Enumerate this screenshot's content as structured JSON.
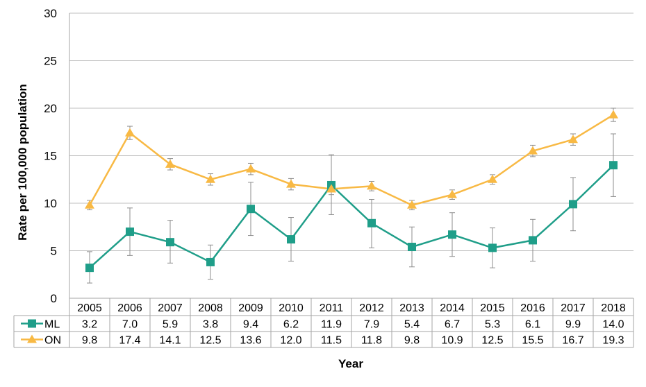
{
  "chart_data": {
    "type": "line",
    "title": "",
    "xlabel": "Year",
    "ylabel": "Rate per 100,000 population",
    "ylim": [
      0,
      30
    ],
    "yticks": [
      0,
      5,
      10,
      15,
      20,
      25,
      30
    ],
    "grid": true,
    "legend_placement": "data-table-left",
    "categories": [
      "2005",
      "2006",
      "2007",
      "2008",
      "2009",
      "2010",
      "2011",
      "2012",
      "2013",
      "2014",
      "2015",
      "2016",
      "2017",
      "2018"
    ],
    "series": [
      {
        "name": "ML",
        "color": "#1f9e89",
        "marker": "square",
        "values": [
          3.2,
          7.0,
          5.9,
          3.8,
          9.4,
          6.2,
          11.9,
          7.9,
          5.4,
          6.7,
          5.3,
          6.1,
          9.9,
          14.0
        ],
        "labels": [
          "3.2",
          "7.0",
          "5.9",
          "3.8",
          "9.4",
          "6.2",
          "11.9",
          "7.9",
          "5.4",
          "6.7",
          "5.3",
          "6.1",
          "9.9",
          "14.0"
        ],
        "ci_lower": [
          1.6,
          4.5,
          3.7,
          2.0,
          6.6,
          3.9,
          8.8,
          5.3,
          3.3,
          4.4,
          3.2,
          3.9,
          7.1,
          10.7
        ],
        "ci_upper": [
          4.9,
          9.5,
          8.2,
          5.6,
          12.2,
          8.5,
          15.1,
          10.4,
          7.5,
          9.0,
          7.4,
          8.3,
          12.7,
          17.3
        ]
      },
      {
        "name": "ON",
        "color": "#f8b944",
        "marker": "triangle",
        "values": [
          9.8,
          17.4,
          14.1,
          12.5,
          13.6,
          12.0,
          11.5,
          11.8,
          9.8,
          10.9,
          12.5,
          15.5,
          16.7,
          19.3
        ],
        "labels": [
          "9.8",
          "17.4",
          "14.1",
          "12.5",
          "13.6",
          "12.0",
          "11.5",
          "11.8",
          "9.8",
          "10.9",
          "12.5",
          "15.5",
          "16.7",
          "19.3"
        ],
        "ci_lower": [
          9.3,
          16.7,
          13.5,
          11.9,
          13.0,
          11.4,
          10.9,
          11.3,
          9.3,
          10.4,
          12.0,
          14.9,
          16.1,
          18.6
        ],
        "ci_upper": [
          10.3,
          18.1,
          14.7,
          13.1,
          14.2,
          12.6,
          12.1,
          12.3,
          10.3,
          11.4,
          13.0,
          16.1,
          17.3,
          20.0
        ]
      }
    ]
  }
}
